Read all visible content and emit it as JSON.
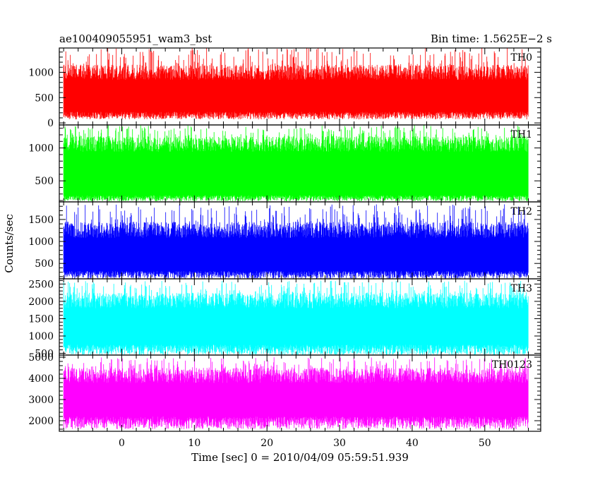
{
  "header": {
    "left_title": "ae100409055951_wam3_bst",
    "right_title": "Bin time: 1.5625E−2 s"
  },
  "chart_data": {
    "type": "line",
    "title": "ae100409055951_wam3_bst",
    "bin_time_label": "Bin time: 1.5625E−2 s",
    "xlabel": "Time [sec] 0 = 2010/04/09 05:59:51.939",
    "ylabel": "Counts/sec",
    "xlim": [
      -8.6,
      57.7
    ],
    "data_x_range": [
      -8.0,
      56.0
    ],
    "x_ticks": [
      0,
      10,
      20,
      30,
      40,
      50
    ],
    "x_tick_labels": [
      "0",
      "10",
      "20",
      "30",
      "40",
      "50"
    ],
    "shared_x": true,
    "grid": false,
    "panels": [
      {
        "name": "TH0",
        "color": "#ff0000",
        "ylim": [
          -40,
          1480
        ],
        "y_ticks": [
          0,
          500,
          1000
        ],
        "y_tick_labels": [
          "0",
          "500",
          "1000"
        ],
        "mean": 650,
        "typical_low": 220,
        "typical_high": 1150,
        "min": 70,
        "max": 1500
      },
      {
        "name": "TH1",
        "color": "#00ff00",
        "ylim": [
          180,
          1350
        ],
        "y_ticks": [
          500,
          1000
        ],
        "y_tick_labels": [
          "500",
          "1000"
        ],
        "mean": 780,
        "typical_low": 280,
        "typical_high": 1180,
        "min": 190,
        "max": 1350
      },
      {
        "name": "TH2",
        "color": "#0000ff",
        "ylim": [
          150,
          1900
        ],
        "y_ticks": [
          500,
          1000,
          1500
        ],
        "y_tick_labels": [
          "500",
          "1000",
          "1500"
        ],
        "mean": 830,
        "typical_low": 330,
        "typical_high": 1450,
        "min": 150,
        "max": 1850
      },
      {
        "name": "TH3",
        "color": "#00ffff",
        "ylim": [
          450,
          2650
        ],
        "y_ticks": [
          500,
          1000,
          1500,
          2000,
          2500
        ],
        "y_tick_labels": [
          "500",
          "1000",
          "1500",
          "2000",
          "2500"
        ],
        "mean": 1500,
        "typical_low": 750,
        "typical_high": 2250,
        "min": 450,
        "max": 2600
      },
      {
        "name": "TH0123",
        "color": "#ff00ff",
        "ylim": [
          1500,
          5100
        ],
        "y_ticks": [
          2000,
          3000,
          4000,
          5000
        ],
        "y_tick_labels": [
          "2000",
          "3000",
          "4000",
          "5000"
        ],
        "mean": 3300,
        "typical_low": 2200,
        "typical_high": 4500,
        "min": 1600,
        "max": 5000
      }
    ]
  }
}
